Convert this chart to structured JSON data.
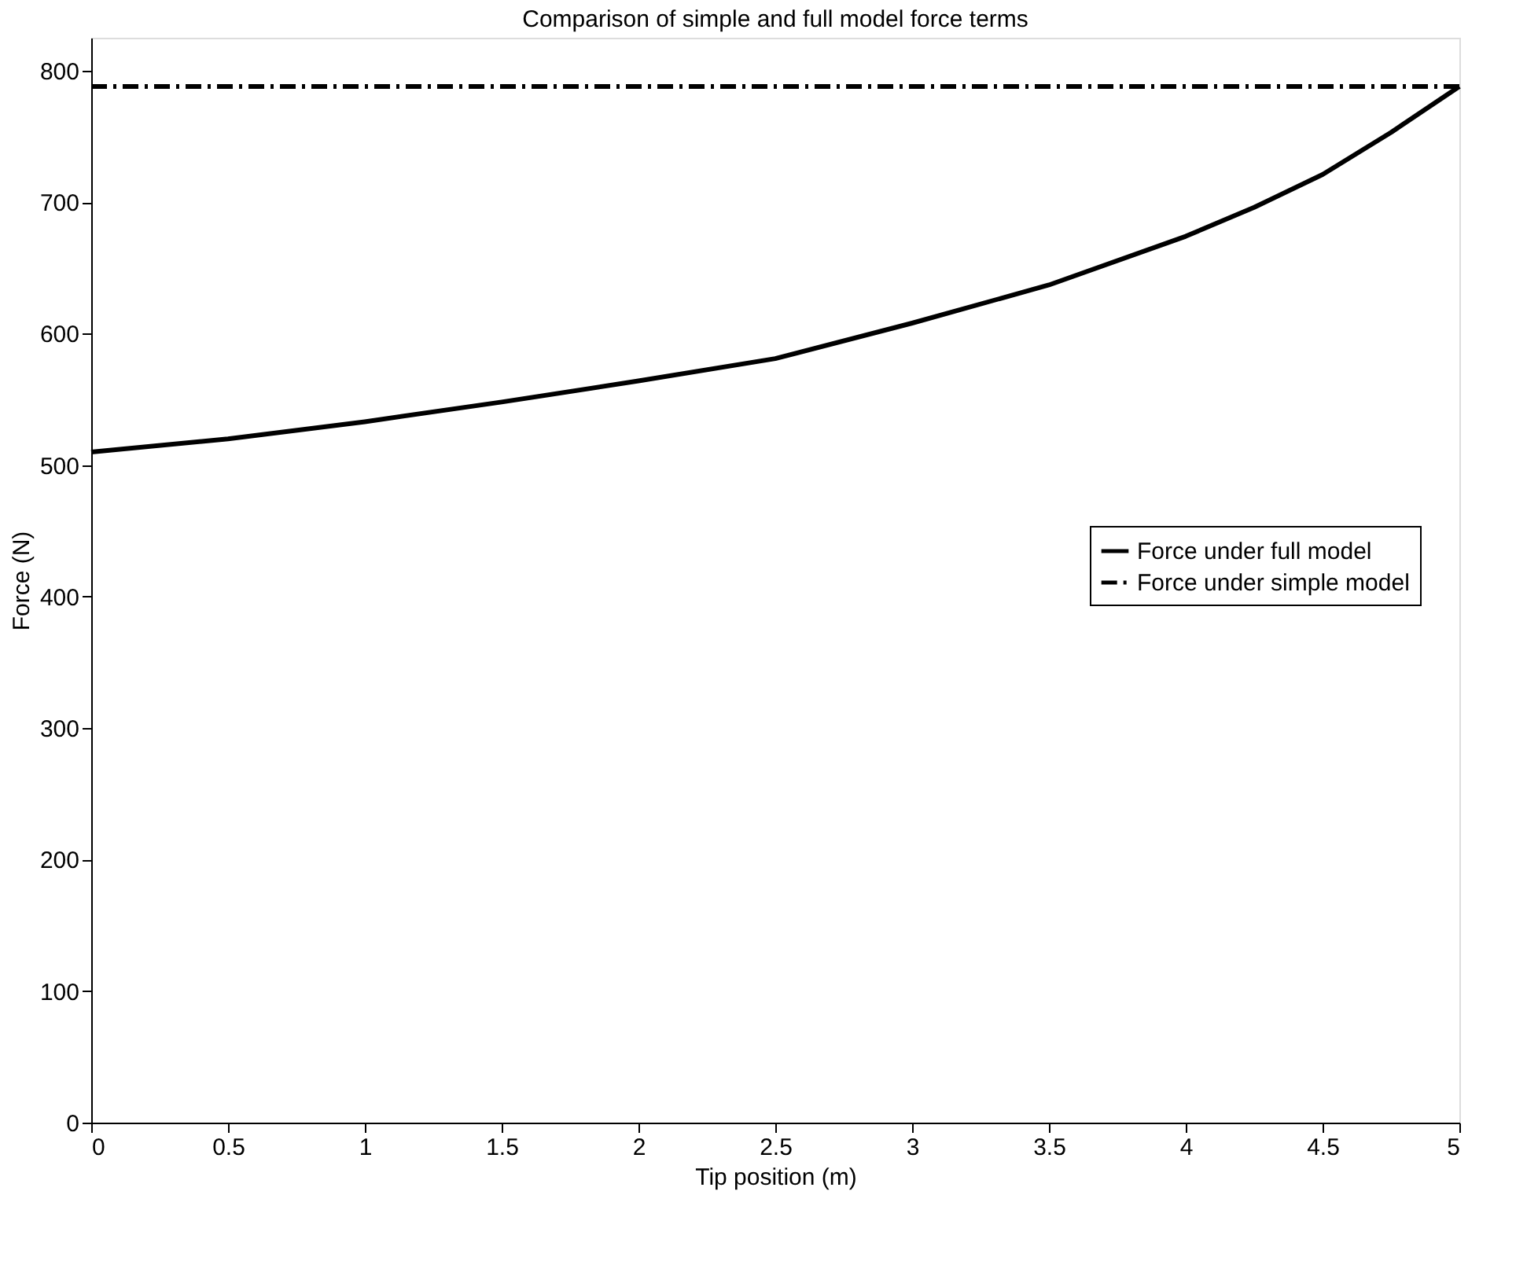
{
  "chart_data": {
    "type": "line",
    "title": "Comparison of simple and full model force terms",
    "xlabel": "Tip position (m)",
    "ylabel": "Force (N)",
    "xlim": [
      0,
      5
    ],
    "ylim": [
      0,
      825
    ],
    "xticks": [
      0,
      0.5,
      1,
      1.5,
      2,
      2.5,
      3,
      3.5,
      4,
      4.5,
      5
    ],
    "yticks": [
      0,
      100,
      200,
      300,
      400,
      500,
      600,
      700,
      800
    ],
    "grid": false,
    "legend": "right",
    "marker": "none",
    "series": [
      {
        "name": "Force under full model",
        "color": "#000000",
        "line_style": "solid",
        "x": [
          0,
          0.5,
          1,
          1.5,
          2,
          2.5,
          3,
          3.5,
          4,
          4.25,
          4.5,
          4.75,
          5
        ],
        "values": [
          510,
          520,
          533,
          548,
          564,
          581,
          608,
          637,
          674,
          696,
          721,
          753,
          788
        ]
      },
      {
        "name": "Force under simple model",
        "color": "#000000",
        "line_style": "dashdot",
        "x": [
          0,
          5
        ],
        "values": [
          788,
          788
        ]
      }
    ]
  }
}
